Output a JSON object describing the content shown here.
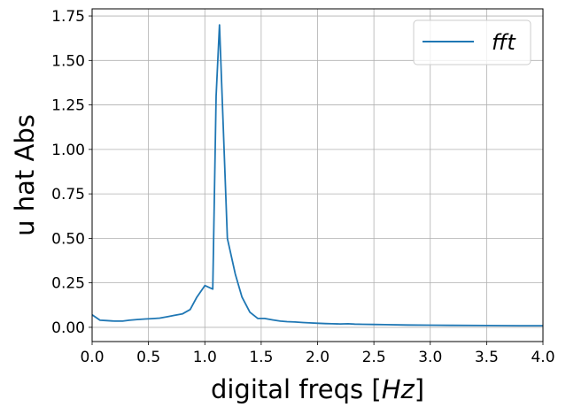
{
  "chart_data": {
    "type": "line",
    "xlabel": "digital freqs [",
    "xlabel_math": "Hz",
    "xlabel_end": "]",
    "ylabel": "u hat Abs",
    "xlim": [
      0.0,
      4.0
    ],
    "ylim": [
      -0.08,
      1.79
    ],
    "x_ticks": [
      "0.0",
      "0.5",
      "1.0",
      "1.5",
      "2.0",
      "2.5",
      "3.0",
      "3.5",
      "4.0"
    ],
    "y_ticks": [
      "0.00",
      "0.25",
      "0.50",
      "0.75",
      "1.00",
      "1.25",
      "1.50",
      "1.75"
    ],
    "grid": true,
    "legend_position": "top-right",
    "series": [
      {
        "name": "fft",
        "color": "#1f77b4",
        "x": [
          0.0,
          0.07,
          0.13,
          0.2,
          0.27,
          0.33,
          0.4,
          0.47,
          0.53,
          0.6,
          0.67,
          0.73,
          0.8,
          0.87,
          0.93,
          1.0,
          1.07,
          1.1,
          1.13,
          1.2,
          1.27,
          1.33,
          1.4,
          1.47,
          1.53,
          1.6,
          1.67,
          1.73,
          1.8,
          1.87,
          1.93,
          2.0,
          2.07,
          2.13,
          2.2,
          2.27,
          2.33,
          2.4,
          2.5,
          2.6,
          2.8,
          3.0,
          3.2,
          3.5,
          3.8,
          4.0
        ],
        "y": [
          0.07,
          0.04,
          0.038,
          0.035,
          0.035,
          0.04,
          0.044,
          0.047,
          0.049,
          0.052,
          0.06,
          0.067,
          0.075,
          0.1,
          0.17,
          0.235,
          0.215,
          1.3,
          1.7,
          0.5,
          0.3,
          0.17,
          0.085,
          0.05,
          0.05,
          0.042,
          0.035,
          0.032,
          0.03,
          0.027,
          0.025,
          0.023,
          0.021,
          0.02,
          0.019,
          0.02,
          0.018,
          0.017,
          0.016,
          0.015,
          0.013,
          0.012,
          0.011,
          0.01,
          0.009,
          0.009
        ]
      }
    ]
  }
}
